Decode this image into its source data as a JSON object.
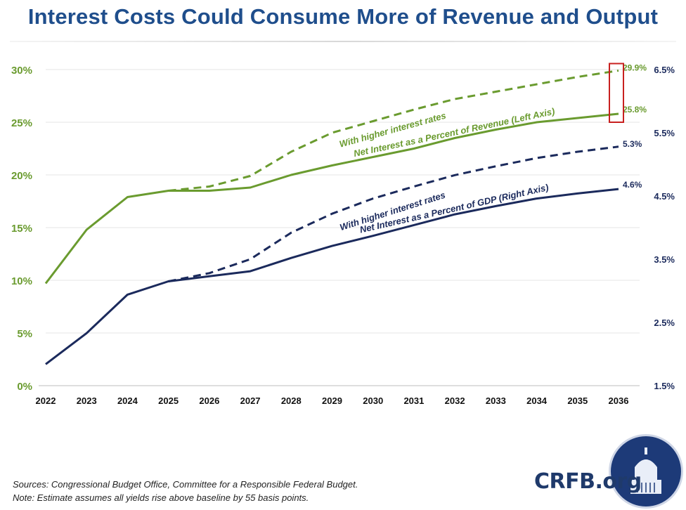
{
  "page": {
    "title": "Interest Costs Could Consume More of Revenue and Output",
    "source_line1": "Sources: Congressional Budget Office, Committee for a Responsible Federal Budget.",
    "source_line2": "Note: Estimate assumes all yields rise above baseline by 55 basis points.",
    "logo_text": "CRFB.org"
  },
  "chart_data": {
    "type": "line",
    "title": "Interest Costs Could Consume More of Revenue and Output",
    "x": [
      "2022",
      "2023",
      "2024",
      "2025",
      "2026",
      "2027",
      "2028",
      "2029",
      "2030",
      "2031",
      "2032",
      "2033",
      "2034",
      "2035",
      "2036"
    ],
    "left_axis": {
      "ticks": [
        0,
        5,
        10,
        15,
        20,
        25,
        30
      ],
      "tick_labels": [
        "0%",
        "5%",
        "10%",
        "15%",
        "20%",
        "25%",
        "30%"
      ],
      "ylim": [
        0,
        30
      ],
      "color": "#6a9b2f"
    },
    "right_axis": {
      "ticks": [
        1.5,
        2.5,
        3.5,
        4.5,
        5.5,
        6.5
      ],
      "tick_labels": [
        "1.5%",
        "2.5%",
        "3.5%",
        "4.5%",
        "5.5%",
        "6.5%"
      ],
      "ylim": [
        1.5,
        6.5
      ],
      "color": "#1b2a5c"
    },
    "grid": "horizontal",
    "series": [
      {
        "name": "Net Interest as a Percent of Revenue (Left Axis)",
        "axis": "left",
        "dash": false,
        "color": "#6a9b2f",
        "values": [
          9.7,
          14.8,
          17.9,
          18.5,
          18.5,
          18.8,
          20.0,
          20.9,
          21.7,
          22.5,
          23.5,
          24.3,
          25.0,
          25.4,
          25.8
        ],
        "end_label": "25.8%"
      },
      {
        "name": "With higher interest rates",
        "axis": "left",
        "dash": true,
        "color": "#6a9b2f",
        "values": [
          null,
          null,
          null,
          18.5,
          18.9,
          19.9,
          22.2,
          24.0,
          25.1,
          26.2,
          27.2,
          27.9,
          28.6,
          29.3,
          29.9
        ],
        "end_label": "29.9%"
      },
      {
        "name": "Net Interest as a Percent of GDP (Right Axis)",
        "axis": "right",
        "dash": false,
        "color": "#1b2a5c",
        "values": [
          1.84,
          2.33,
          2.94,
          3.15,
          3.23,
          3.31,
          3.52,
          3.71,
          3.87,
          4.04,
          4.21,
          4.34,
          4.46,
          4.54,
          4.61
        ],
        "end_label": "4.6%"
      },
      {
        "name": "With higher interest rates",
        "axis": "right",
        "dash": true,
        "color": "#1b2a5c",
        "values": [
          null,
          null,
          null,
          3.15,
          3.28,
          3.5,
          3.92,
          4.22,
          4.46,
          4.65,
          4.83,
          4.97,
          5.1,
          5.2,
          5.28
        ],
        "end_label": "5.3%"
      }
    ]
  }
}
